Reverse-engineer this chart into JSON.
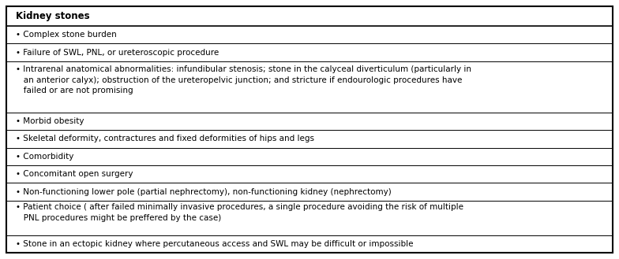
{
  "title": "Kidney stones",
  "rows": [
    {
      "text": "• Complex stone burden",
      "lines": 1
    },
    {
      "text": "• Failure of SWL, PNL, or ureteroscopic procedure",
      "lines": 1
    },
    {
      "text": "• Intrarenal anatomical abnormalities: infundibular stenosis; stone in the calyceal diverticulum (particularly in\n   an anterior calyx); obstruction of the ureteropelvic junction; and stricture if endourologic procedures have\n   failed or are not promising",
      "lines": 3
    },
    {
      "text": "• Morbid obesity",
      "lines": 1
    },
    {
      "text": "• Skeletal deformity, contractures and fixed deformities of hips and legs",
      "lines": 1
    },
    {
      "text": "• Comorbidity",
      "lines": 1
    },
    {
      "text": "• Concomitant open surgery",
      "lines": 1
    },
    {
      "text": "• Non-functioning lower pole (partial nephrectomy), non-functioning kidney (nephrectomy)",
      "lines": 1
    },
    {
      "text": "• Patient choice ( after failed minimally invasive procedures, a single procedure avoiding the risk of multiple\n   PNL procedures might be preffered by the case)",
      "lines": 2
    },
    {
      "text": "• Stone in an ectopic kidney where percutaneous access and SWL may be difficult or impossible",
      "lines": 1
    }
  ],
  "border_color": "#000000",
  "text_color": "#000000",
  "font_size": 7.5,
  "title_font_size": 8.5,
  "fig_width": 7.84,
  "fig_height": 3.29,
  "dpi": 100
}
